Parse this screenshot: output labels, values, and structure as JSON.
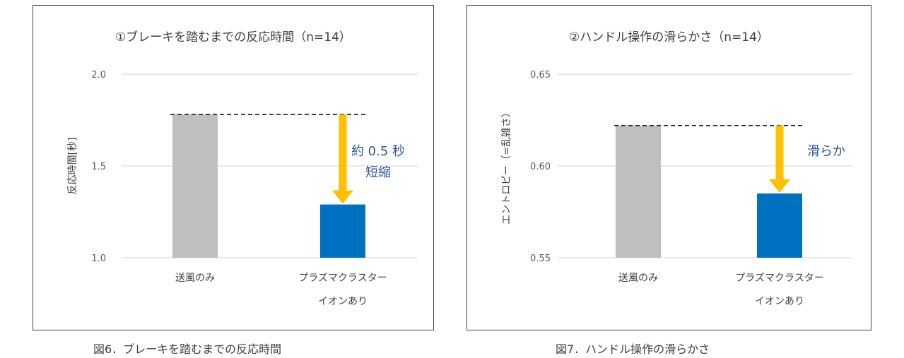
{
  "chart_data": [
    {
      "type": "bar",
      "title": "①ブレーキを踏むまでの反応時間（n=14）",
      "caption": "図6．ブレーキを踏むまでの反応時間",
      "ylabel": "反応時間[秒]",
      "ylim": [
        1.0,
        2.0
      ],
      "yticks": [
        "2.0",
        "1.5",
        "1.0"
      ],
      "categories": [
        [
          "送風のみ"
        ],
        [
          "プラズマクラスター",
          "イオンあり"
        ]
      ],
      "values": [
        1.78,
        1.29
      ],
      "colors": [
        "#bfbfbf",
        "#0070c0"
      ],
      "reference_value": 1.78,
      "annotation": [
        "約 0.5 秒",
        "短縮"
      ],
      "arrow_color": "#ffc000",
      "annotation_color": "#2f5597",
      "grid": true
    },
    {
      "type": "bar",
      "title": "②ハンドル操作の滑らかさ（n=14）",
      "caption": "図7．ハンドル操作の滑らかさ",
      "ylabel": "エントロピー（=乱雑さ）",
      "ylim": [
        0.55,
        0.65
      ],
      "yticks": [
        "0.65",
        "0.60",
        "0.55"
      ],
      "categories": [
        [
          "送風のみ"
        ],
        [
          "プラズマクラスター",
          "イオンあり"
        ]
      ],
      "values": [
        0.622,
        0.585
      ],
      "colors": [
        "#bfbfbf",
        "#0070c0"
      ],
      "reference_value": 0.622,
      "annotation": [
        "滑らか"
      ],
      "arrow_color": "#ffc000",
      "annotation_color": "#2f5597",
      "grid": true
    }
  ]
}
